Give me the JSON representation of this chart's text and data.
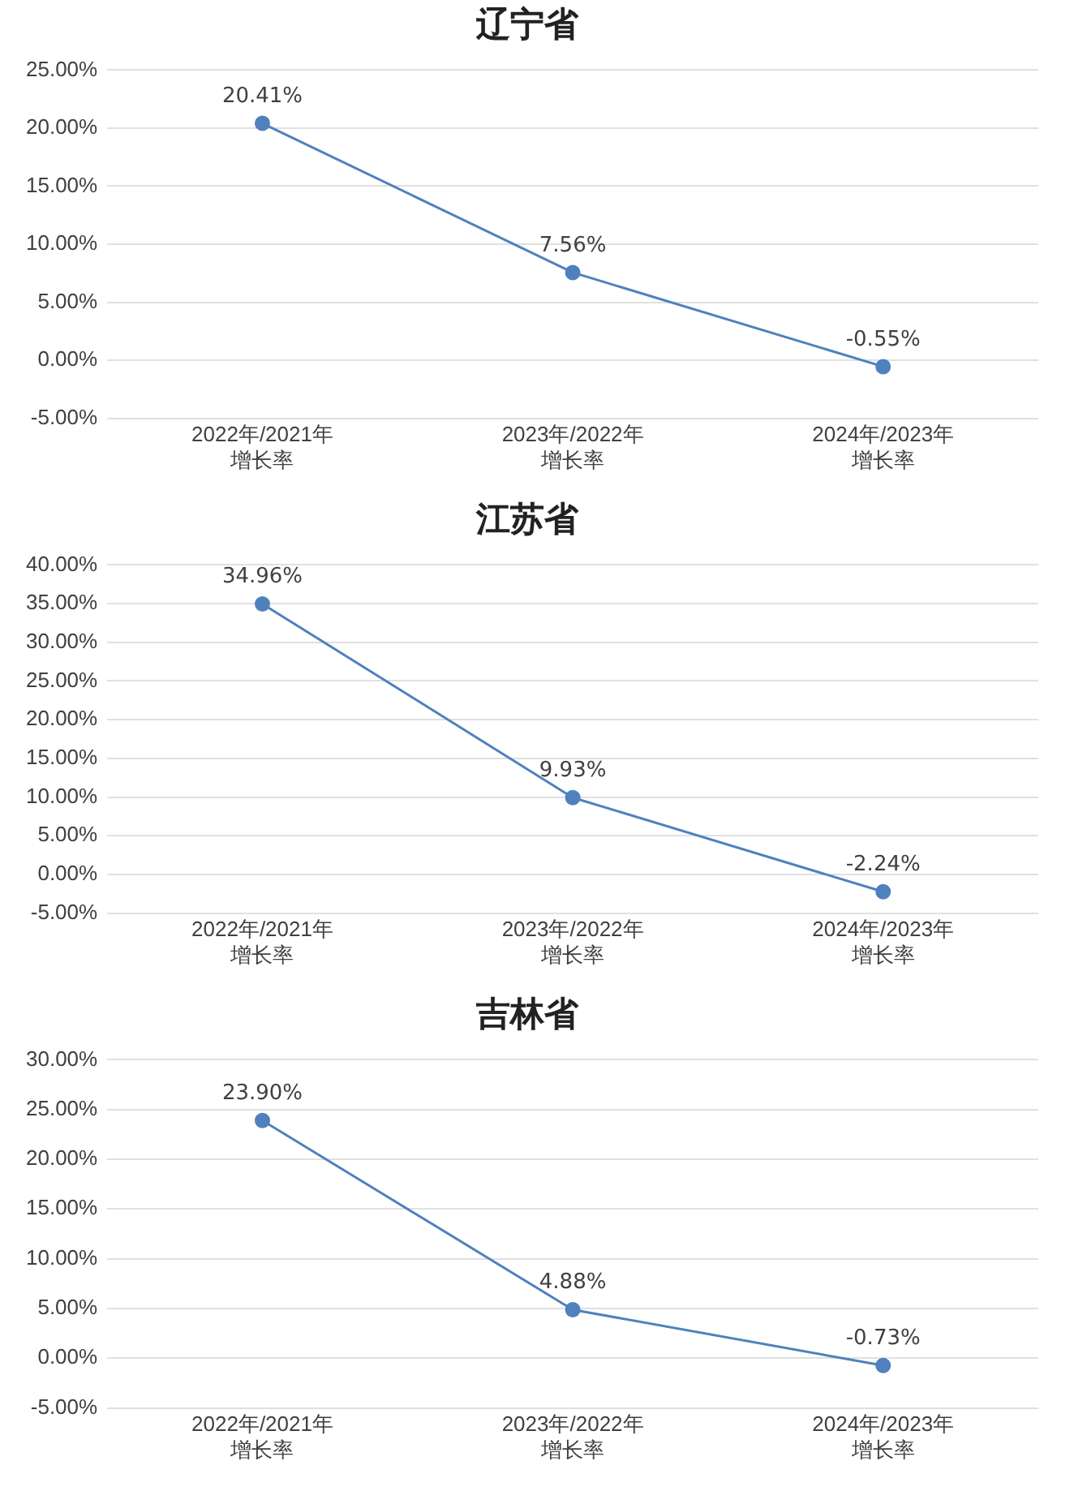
{
  "chart_data": [
    {
      "type": "line",
      "title": "辽宁省",
      "categories": [
        "2022年/2021年增长率",
        "2023年/2022年增长率",
        "2024年/2023年增长率"
      ],
      "series": [
        {
          "color": "#4f81bd",
          "values": [
            20.41,
            7.56,
            -0.55
          ],
          "value_labels": [
            "20.41%",
            "7.56%",
            "-0.55%"
          ]
        }
      ],
      "ylim": [
        -5,
        25
      ],
      "yticks": [
        {
          "value": -5,
          "label": "-5.00%"
        },
        {
          "value": 0,
          "label": "0.00%"
        },
        {
          "value": 5,
          "label": "5.00%"
        },
        {
          "value": 10,
          "label": "10.00%"
        },
        {
          "value": 15,
          "label": "15.00%"
        },
        {
          "value": 20,
          "label": "20.00%"
        },
        {
          "value": 25,
          "label": "25.00%"
        }
      ],
      "grid": "y",
      "legend": false,
      "marker": "circle",
      "line_style": "solid"
    },
    {
      "type": "line",
      "title": "江苏省",
      "categories": [
        "2022年/2021年增长率",
        "2023年/2022年增长率",
        "2024年/2023年增长率"
      ],
      "series": [
        {
          "color": "#4f81bd",
          "values": [
            34.96,
            9.93,
            -2.24
          ],
          "value_labels": [
            "34.96%",
            "9.93%",
            "-2.24%"
          ]
        }
      ],
      "ylim": [
        -5,
        40
      ],
      "yticks": [
        {
          "value": -5,
          "label": "-5.00%"
        },
        {
          "value": 0,
          "label": "0.00%"
        },
        {
          "value": 5,
          "label": "5.00%"
        },
        {
          "value": 10,
          "label": "10.00%"
        },
        {
          "value": 15,
          "label": "15.00%"
        },
        {
          "value": 20,
          "label": "20.00%"
        },
        {
          "value": 25,
          "label": "25.00%"
        },
        {
          "value": 30,
          "label": "30.00%"
        },
        {
          "value": 35,
          "label": "35.00%"
        },
        {
          "value": 40,
          "label": "40.00%"
        }
      ],
      "grid": "y",
      "legend": false,
      "marker": "circle",
      "line_style": "solid"
    },
    {
      "type": "line",
      "title": "吉林省",
      "categories": [
        "2022年/2021年增长率",
        "2023年/2022年增长率",
        "2024年/2023年增长率"
      ],
      "series": [
        {
          "color": "#4f81bd",
          "values": [
            23.9,
            4.88,
            -0.73
          ],
          "value_labels": [
            "23.90%",
            "4.88%",
            "-0.73%"
          ]
        }
      ],
      "ylim": [
        -5,
        30
      ],
      "yticks": [
        {
          "value": -5,
          "label": "-5.00%"
        },
        {
          "value": 0,
          "label": "0.00%"
        },
        {
          "value": 5,
          "label": "5.00%"
        },
        {
          "value": 10,
          "label": "10.00%"
        },
        {
          "value": 15,
          "label": "15.00%"
        },
        {
          "value": 20,
          "label": "20.00%"
        },
        {
          "value": 25,
          "label": "25.00%"
        },
        {
          "value": 30,
          "label": "30.00%"
        }
      ],
      "grid": "y",
      "legend": false,
      "marker": "circle",
      "line_style": "solid"
    }
  ]
}
